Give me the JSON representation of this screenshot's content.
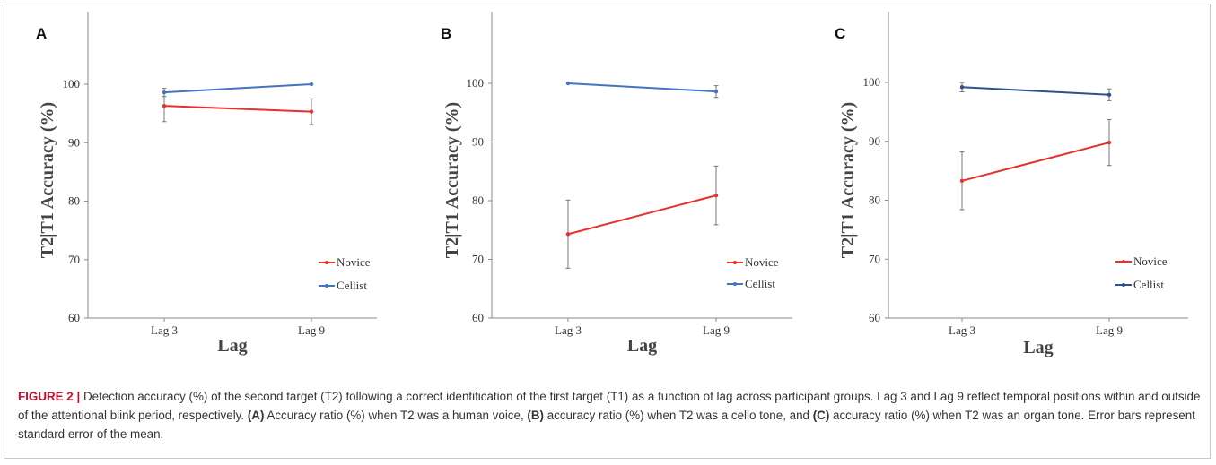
{
  "figure": {
    "label": "FIGURE 2 |",
    "caption_parts": [
      {
        "t": "Detection accuracy (%) of the second target (T2) following a correct identification of the first target (T1) as a function of lag across participant groups. Lag 3 and Lag 9 reflect temporal positions within and outside of the attentional blink period, respectively. ",
        "b": false
      },
      {
        "t": "(A)",
        "b": true
      },
      {
        "t": " Accuracy ratio (%) when T2 was a human voice, ",
        "b": false
      },
      {
        "t": "(B)",
        "b": true
      },
      {
        "t": " accuracy ratio (%) when T2 was a cello tone, and ",
        "b": false
      },
      {
        "t": "(C)",
        "b": true
      },
      {
        "t": " accuracy ratio (%) when T2 was an organ tone. Error bars represent standard error of the mean.",
        "b": false
      }
    ]
  },
  "chart_data": [
    {
      "panel": "A",
      "type": "line",
      "categories": [
        "Lag 3",
        "Lag 9"
      ],
      "xlabel": "Lag",
      "ylabel": "T2|T1 Accuracy (%)",
      "ylim": [
        60,
        100
      ],
      "yticks": [
        60,
        70,
        80,
        90,
        100
      ],
      "legend_position": "bottom-right",
      "series": [
        {
          "name": "Novice",
          "color": "#e8302a",
          "values": [
            96.3,
            95.3
          ],
          "errors": [
            2.7,
            2.2
          ]
        },
        {
          "name": "Cellist",
          "color": "#4472c4",
          "values": [
            98.6,
            100.0
          ],
          "errors": [
            0.7,
            0.0
          ]
        }
      ]
    },
    {
      "panel": "B",
      "type": "line",
      "categories": [
        "Lag 3",
        "Lag 9"
      ],
      "xlabel": "Lag",
      "ylabel": "T2|T1 Accuracy (%)",
      "ylim": [
        60,
        100
      ],
      "yticks": [
        60,
        70,
        80,
        90,
        100
      ],
      "legend_position": "bottom-right",
      "series": [
        {
          "name": "Novice",
          "color": "#e8302a",
          "values": [
            74.3,
            80.9
          ],
          "errors": [
            5.8,
            5.0
          ]
        },
        {
          "name": "Cellist",
          "color": "#4472c4",
          "values": [
            100.0,
            98.6
          ],
          "errors": [
            0.0,
            1.0
          ]
        }
      ]
    },
    {
      "panel": "C",
      "type": "line",
      "categories": [
        "Lag 3",
        "Lag 9"
      ],
      "xlabel": "Lag",
      "ylabel": "T2|T1 Accuracy (%)",
      "ylim": [
        60,
        100
      ],
      "yticks": [
        60,
        70,
        80,
        90,
        100
      ],
      "legend_position": "bottom-right",
      "series": [
        {
          "name": "Novice",
          "color": "#e8302a",
          "values": [
            83.3,
            89.8
          ],
          "errors": [
            4.9,
            3.9
          ]
        },
        {
          "name": "Cellist",
          "color": "#2f4f8f",
          "values": [
            99.2,
            97.9
          ],
          "errors": [
            0.8,
            1.0
          ]
        }
      ]
    }
  ]
}
